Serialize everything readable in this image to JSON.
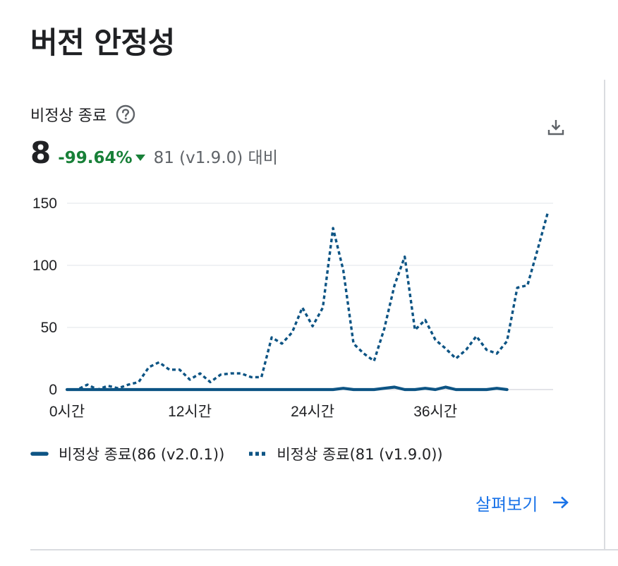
{
  "page": {
    "title": "버전 안정성"
  },
  "metric": {
    "title": "비정상 종료",
    "value": "8",
    "change": "-99.64%",
    "compare_text": "81 (v1.9.0) 대비",
    "icons": {
      "help": "help-circle-icon",
      "download": "download-icon",
      "trend": "triangle-down-icon"
    }
  },
  "colors": {
    "series": "#0d5484",
    "positive_change": "#188038",
    "link": "#1a73e8",
    "gridline": "#e8eaed",
    "divider": "#dadce0"
  },
  "legend": {
    "items": [
      {
        "label": "비정상 종료(86 (v2.0.1))",
        "style": "solid"
      },
      {
        "label": "비정상 종료(81 (v1.9.0))",
        "style": "dotted"
      }
    ]
  },
  "link": {
    "label": "살펴보기",
    "icon": "arrow-right-icon"
  },
  "chart_data": {
    "type": "line",
    "x_unit": "hours",
    "x_ticks": [
      0,
      12,
      24,
      36
    ],
    "x_tick_labels": [
      "0시간",
      "12시간",
      "24시간",
      "36시간"
    ],
    "y_ticks": [
      0,
      50,
      100,
      150
    ],
    "y_tick_labels": [
      "0",
      "50",
      "100",
      "150"
    ],
    "ylim": [
      0,
      150
    ],
    "xlim": [
      0,
      47.5
    ],
    "grid": true,
    "legend_position": "bottom",
    "series": [
      {
        "name": "비정상 종료(86 (v2.0.1))",
        "style": "solid",
        "x": [
          0,
          1,
          2,
          3,
          4,
          5,
          6,
          7,
          8,
          9,
          10,
          11,
          12,
          13,
          14,
          15,
          16,
          17,
          18,
          19,
          20,
          21,
          22,
          23,
          24,
          25,
          26,
          27,
          28,
          29,
          30,
          31,
          32,
          33,
          34,
          35,
          36,
          37,
          38,
          39,
          40,
          41,
          42,
          43
        ],
        "values": [
          0,
          0,
          0,
          0,
          0,
          0,
          0,
          0,
          0,
          0,
          0,
          0,
          0,
          0,
          0,
          0,
          0,
          0,
          0,
          0,
          0,
          0,
          0,
          0,
          0,
          0,
          0,
          1,
          0,
          0,
          0,
          1,
          2,
          0,
          0,
          1,
          0,
          2,
          0,
          0,
          0,
          0,
          1,
          0
        ]
      },
      {
        "name": "비정상 종료(81 (v1.9.0))",
        "style": "dotted",
        "x": [
          0,
          1,
          2,
          3,
          4,
          5,
          6,
          7,
          8,
          9,
          10,
          11,
          12,
          13,
          14,
          15,
          16,
          17,
          18,
          19,
          20,
          21,
          22,
          23,
          24,
          25,
          26,
          27,
          28,
          29,
          30,
          31,
          32,
          33,
          34,
          35,
          36,
          37,
          38,
          39,
          40,
          41,
          42,
          43,
          44,
          45,
          46,
          47
        ],
        "values": [
          0,
          0,
          4,
          0,
          3,
          1,
          4,
          6,
          18,
          22,
          16,
          16,
          8,
          13,
          6,
          12,
          13,
          13,
          10,
          10,
          42,
          37,
          46,
          66,
          51,
          66,
          130,
          96,
          37,
          29,
          23,
          49,
          84,
          107,
          48,
          56,
          40,
          33,
          25,
          32,
          43,
          32,
          29,
          39,
          82,
          84,
          113,
          143
        ]
      }
    ]
  }
}
